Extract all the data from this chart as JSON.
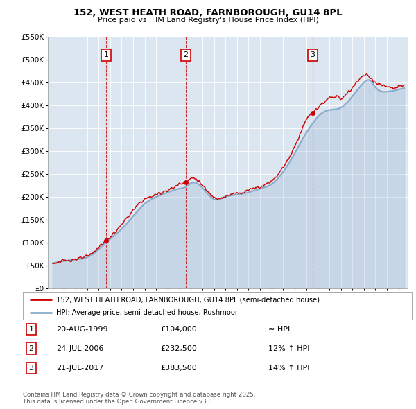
{
  "title": "152, WEST HEATH ROAD, FARNBOROUGH, GU14 8PL",
  "subtitle": "Price paid vs. HM Land Registry's House Price Index (HPI)",
  "legend_line1": "152, WEST HEATH ROAD, FARNBOROUGH, GU14 8PL (semi-detached house)",
  "legend_line2": "HPI: Average price, semi-detached house, Rushmoor",
  "footnote": "Contains HM Land Registry data © Crown copyright and database right 2025.\nThis data is licensed under the Open Government Licence v3.0.",
  "transactions": [
    {
      "label": "1",
      "date": "20-AUG-1999",
      "price": 104000,
      "note": "≈ HPI"
    },
    {
      "label": "2",
      "date": "24-JUL-2006",
      "price": 232500,
      "note": "12% ↑ HPI"
    },
    {
      "label": "3",
      "date": "21-JUL-2017",
      "price": 383500,
      "note": "14% ↑ HPI"
    }
  ],
  "transaction_years": [
    1999.64,
    2006.56,
    2017.55
  ],
  "transaction_prices": [
    104000,
    232500,
    383500
  ],
  "line_color_price": "#cc0000",
  "line_color_hpi": "#88aacc",
  "background_color": "#dce6f1",
  "plot_bg_color": "#dce6f1",
  "ylim": [
    0,
    550000
  ],
  "yticks": [
    0,
    50000,
    100000,
    150000,
    200000,
    250000,
    300000,
    350000,
    400000,
    450000,
    500000,
    550000
  ],
  "box_color": "#cc0000"
}
